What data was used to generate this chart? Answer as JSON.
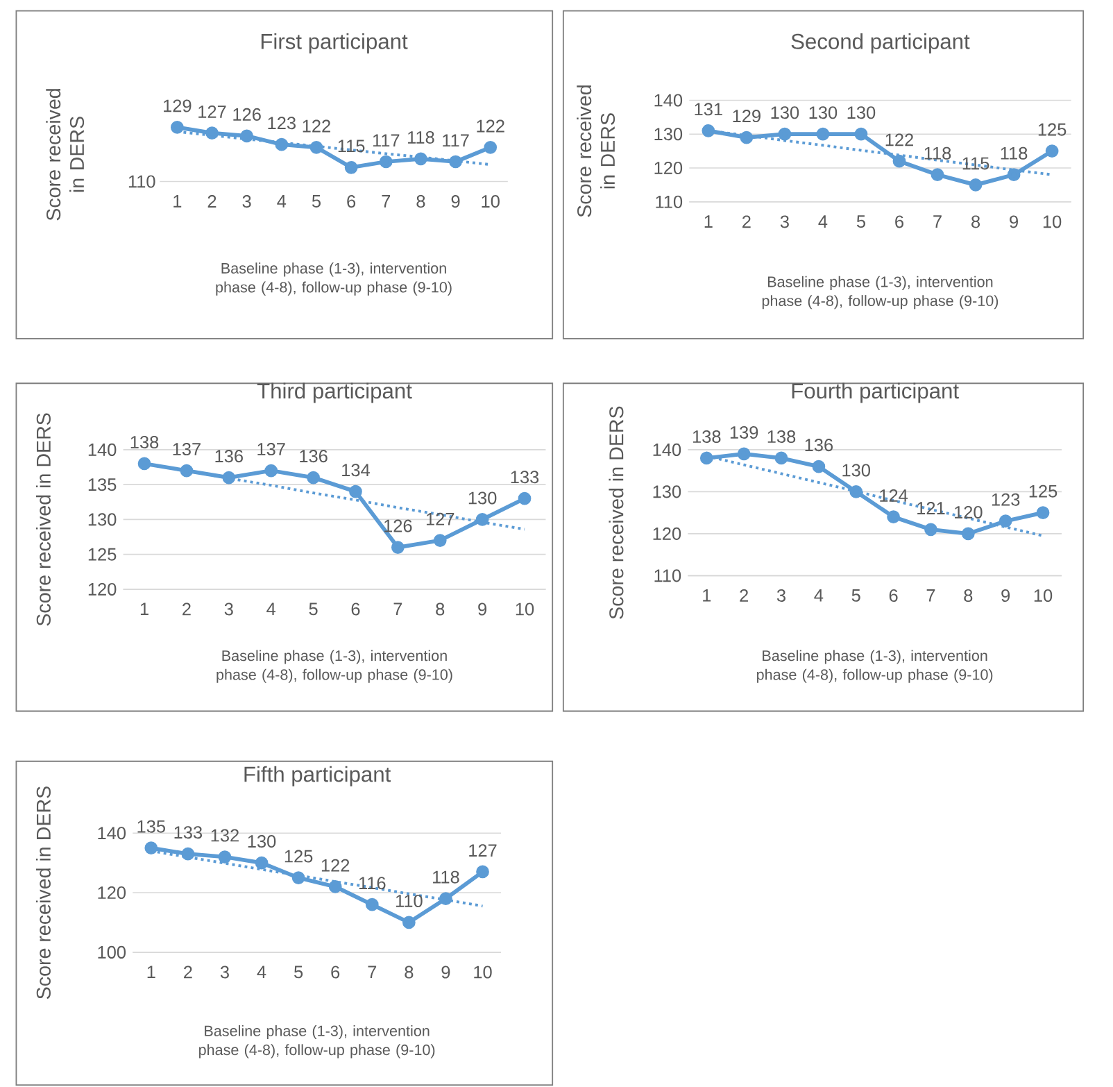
{
  "chart_data": [
    {
      "type": "line",
      "title": "First participant",
      "xlabel": "Baseline phase (1-3), intervention phase (4-8), follow-up phase (9-10)",
      "ylabel": "Score received in DERS",
      "x": [
        1,
        2,
        3,
        4,
        5,
        6,
        7,
        8,
        9,
        10
      ],
      "xlim": [
        0.5,
        10.5
      ],
      "xticks": [
        1,
        2,
        3,
        4,
        5,
        6,
        7,
        8,
        9,
        10
      ],
      "annotations": [
        "110"
      ],
      "marker": "circle",
      "series": [
        {
          "color": "#5b9bd5",
          "values": [
            129,
            127,
            126,
            123,
            122,
            115,
            117,
            118,
            117,
            122
          ],
          "value_labels": [
            "129",
            "127",
            "126",
            "123",
            "122",
            "115",
            "117",
            "118",
            "117",
            "122"
          ]
        },
        {
          "type": "line",
          "line_style": "dotted",
          "marker": "none",
          "color": "#5b9bd5",
          "values": [
            127.5,
            126.2,
            124.9,
            123.7,
            122.4,
            121.1,
            119.8,
            118.6,
            117.3,
            116
          ]
        }
      ]
    },
    {
      "type": "line",
      "title": "Second participant",
      "xlabel": "Baseline phase (1-3), intervention phase (4-8), follow-up phase (9-10)",
      "ylabel": "Score received in DERS",
      "x": [
        1,
        2,
        3,
        4,
        5,
        6,
        7,
        8,
        9,
        10
      ],
      "xlim": [
        0.5,
        10.5
      ],
      "xticks": [
        1,
        2,
        3,
        4,
        5,
        6,
        7,
        8,
        9,
        10
      ],
      "ylim": [
        110,
        140
      ],
      "yticks": [
        110,
        120,
        130,
        140
      ],
      "grid": "y",
      "marker": "circle",
      "series": [
        {
          "color": "#5b9bd5",
          "values": [
            131,
            129,
            130,
            130,
            130,
            122,
            118,
            115,
            118,
            125
          ],
          "value_labels": [
            "131",
            "129",
            "130",
            "130",
            "130",
            "122",
            "118",
            "115",
            "118",
            "125"
          ]
        },
        {
          "type": "line",
          "line_style": "dotted",
          "marker": "none",
          "color": "#5b9bd5",
          "values": [
            131,
            129.6,
            128.1,
            126.7,
            125.2,
            123.8,
            122.3,
            120.9,
            119.4,
            118
          ]
        }
      ]
    },
    {
      "type": "line",
      "title": "Third participant",
      "xlabel": "Baseline phase (1-3), intervention phase (4-8), follow-up phase (9-10)",
      "ylabel": "Score received in DERS",
      "x": [
        1,
        2,
        3,
        4,
        5,
        6,
        7,
        8,
        9,
        10
      ],
      "xlim": [
        0.5,
        10.5
      ],
      "xticks": [
        1,
        2,
        3,
        4,
        5,
        6,
        7,
        8,
        9,
        10
      ],
      "ylim": [
        120,
        140
      ],
      "yticks": [
        120,
        125,
        130,
        135,
        140
      ],
      "grid": "y",
      "marker": "circle",
      "series": [
        {
          "color": "#5b9bd5",
          "values": [
            138,
            137,
            136,
            137,
            136,
            134,
            126,
            127,
            130,
            133
          ],
          "value_labels": [
            "138",
            "137",
            "136",
            "137",
            "136",
            "134",
            "126",
            "127",
            "130",
            "133"
          ]
        },
        {
          "type": "line",
          "line_style": "dotted",
          "marker": "none",
          "color": "#5b9bd5",
          "values": [
            138,
            137,
            135.9,
            134.9,
            133.8,
            132.8,
            131.7,
            130.7,
            129.6,
            128.6
          ]
        }
      ]
    },
    {
      "type": "line",
      "title": "Fourth participant",
      "xlabel": "Baseline phase (1-3), intervention phase (4-8), follow-up phase (9-10)",
      "ylabel": "Score received in DERS",
      "x": [
        1,
        2,
        3,
        4,
        5,
        6,
        7,
        8,
        9,
        10
      ],
      "xlim": [
        0.5,
        10.5
      ],
      "xticks": [
        1,
        2,
        3,
        4,
        5,
        6,
        7,
        8,
        9,
        10
      ],
      "ylim": [
        110,
        140
      ],
      "yticks": [
        110,
        120,
        130,
        140
      ],
      "grid": "y",
      "marker": "circle",
      "series": [
        {
          "color": "#5b9bd5",
          "values": [
            138,
            139,
            138,
            136,
            130,
            124,
            121,
            120,
            123,
            125
          ],
          "value_labels": [
            "138",
            "139",
            "138",
            "136",
            "130",
            "124",
            "121",
            "120",
            "123",
            "125"
          ]
        },
        {
          "type": "line",
          "line_style": "dotted",
          "marker": "none",
          "color": "#5b9bd5",
          "values": [
            138.5,
            136.4,
            134.3,
            132.2,
            130.1,
            127.9,
            125.8,
            123.7,
            121.6,
            119.5
          ]
        }
      ]
    },
    {
      "type": "line",
      "title": "Fifth participant",
      "xlabel": "Baseline phase (1-3), intervention phase (4-8), follow-up phase (9-10)",
      "ylabel": "Score received in DERS",
      "x": [
        1,
        2,
        3,
        4,
        5,
        6,
        7,
        8,
        9,
        10
      ],
      "xlim": [
        0.5,
        10.5
      ],
      "xticks": [
        1,
        2,
        3,
        4,
        5,
        6,
        7,
        8,
        9,
        10
      ],
      "ylim": [
        100,
        140
      ],
      "yticks": [
        100,
        120,
        140
      ],
      "grid": "y",
      "marker": "circle",
      "series": [
        {
          "color": "#5b9bd5",
          "values": [
            135,
            133,
            132,
            130,
            125,
            122,
            116,
            110,
            118,
            127
          ],
          "value_labels": [
            "135",
            "133",
            "132",
            "130",
            "125",
            "122",
            "116",
            "110",
            "118",
            "127"
          ]
        },
        {
          "type": "line",
          "line_style": "dotted",
          "marker": "none",
          "color": "#5b9bd5",
          "values": [
            134,
            131.9,
            129.9,
            127.8,
            125.8,
            123.7,
            121.7,
            119.6,
            117.6,
            115.5
          ]
        }
      ]
    }
  ]
}
